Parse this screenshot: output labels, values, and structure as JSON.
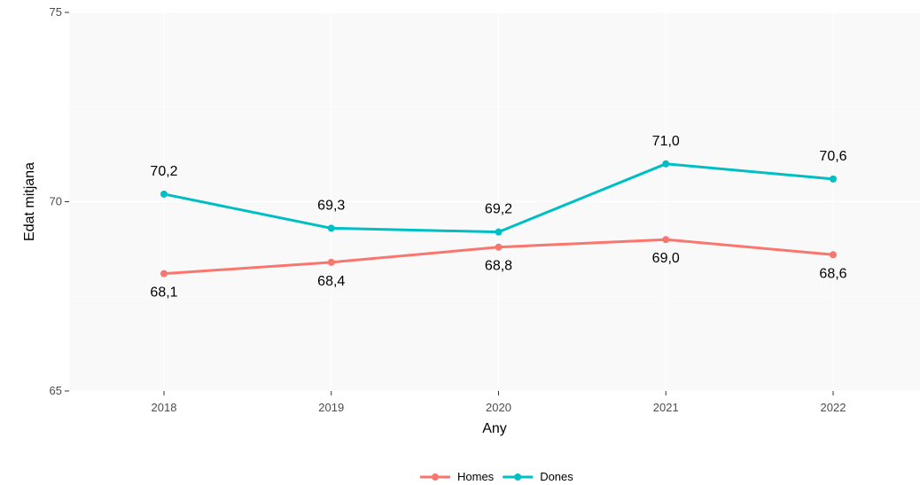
{
  "chart_data": {
    "type": "line",
    "xlabel": "Any",
    "ylabel": "Edat mitjana",
    "x": [
      2018,
      2019,
      2020,
      2021,
      2022
    ],
    "ylim": [
      65,
      75
    ],
    "yticks": [
      65,
      70,
      75
    ],
    "grid": true,
    "legend_position": "bottom",
    "series": [
      {
        "name": "Homes",
        "color": "#F8766D",
        "values": [
          68.1,
          68.4,
          68.8,
          69.0,
          68.6
        ],
        "labels": [
          "68,1",
          "68,4",
          "68,8",
          "69,0",
          "68,6"
        ],
        "label_position": "below"
      },
      {
        "name": "Dones",
        "color": "#00BFC4",
        "values": [
          70.2,
          69.3,
          69.2,
          71.0,
          70.6
        ],
        "labels": [
          "70,2",
          "69,3",
          "69,2",
          "71,0",
          "70,6"
        ],
        "label_position": "above"
      }
    ]
  }
}
